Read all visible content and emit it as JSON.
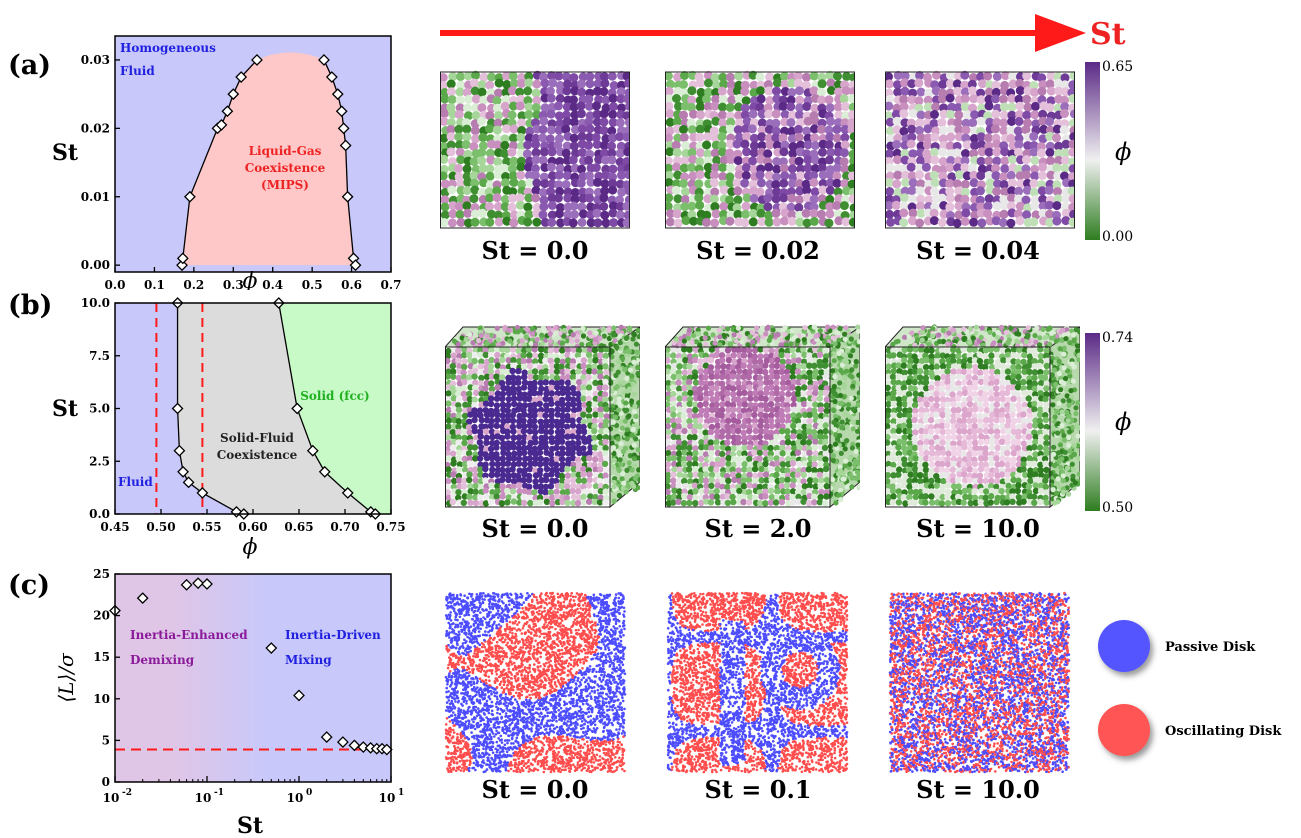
{
  "header": {
    "arrow_label": "St",
    "arrow_color": "#ff1a1a"
  },
  "panels": {
    "a": {
      "letter": "(a)",
      "ylabel": "St",
      "xlabel": "ϕ",
      "region_fluid": [
        "Homogeneous",
        "Fluid"
      ],
      "region_mips": [
        "Liquid-Gas",
        "Coexistence",
        "(MIPS)"
      ],
      "snapshot_captions": [
        "St = 0.0",
        "St = 0.02",
        "St = 0.04"
      ],
      "colorbar": {
        "max": "0.65",
        "min": "0.00",
        "symbol": "ϕ"
      }
    },
    "b": {
      "letter": "(b)",
      "ylabel": "St",
      "xlabel": "ϕ",
      "region_fluid": "Fluid",
      "region_coex": [
        "Solid-Fluid",
        "Coexistence"
      ],
      "region_solid": "Solid (fcc)",
      "snapshot_captions": [
        "St = 0.0",
        "St = 2.0",
        "St = 10.0"
      ],
      "colorbar": {
        "max": "0.74",
        "min": "0.50",
        "symbol": "ϕ"
      }
    },
    "c": {
      "letter": "(c)",
      "ylabel": "⟨L⟩/σ",
      "xlabel": "St",
      "region_left": [
        "Inertia-Enhanced",
        "Demixing"
      ],
      "region_right": [
        "Inertia-Driven",
        "Mixing"
      ],
      "snapshot_captions": [
        "St = 0.0",
        "St = 0.1",
        "St = 10.0"
      ],
      "legend": [
        {
          "label": "Passive Disk",
          "color": "#5555ff"
        },
        {
          "label": "Oscillating Disk",
          "color": "#ff5555"
        }
      ]
    }
  },
  "colors": {
    "fluid_blue": "#c8c8fa",
    "mips_pink": "#ffc8c8",
    "coex_gray": "#dcdcdc",
    "solid_green": "#c8fac8",
    "demix_purple": "#e0c6e6",
    "region_text_blue": "#2020e0",
    "region_text_red": "#ee2222",
    "region_text_green": "#20b020",
    "region_text_purple": "#8a1a9a",
    "colorbar_top": "#5b2a86",
    "colorbar_mid": "#f0f0f0",
    "colorbar_bottom": "#2e7d20"
  },
  "chart_data": [
    {
      "id": "a",
      "type": "scatter",
      "xlabel": "ϕ",
      "ylabel": "St",
      "xlim": [
        0.0,
        0.7
      ],
      "ylim": [
        -0.001,
        0.0335
      ],
      "xticks": [
        "0.0",
        "0.1",
        "0.2",
        "0.3",
        "0.4",
        "0.5",
        "0.6",
        "0.7"
      ],
      "yticks": [
        "0.00",
        "0.01",
        "0.02",
        "0.03"
      ],
      "series": [
        {
          "x": [
            0.17,
            0.172,
            0.19,
            0.26,
            0.27,
            0.285,
            0.3,
            0.32,
            0.36
          ],
          "y": [
            0.0,
            0.001,
            0.01,
            0.02,
            0.0205,
            0.0225,
            0.025,
            0.0275,
            0.03
          ]
        },
        {
          "x": [
            0.53,
            0.55,
            0.565,
            0.575,
            0.58,
            0.585,
            0.59,
            0.605,
            0.61
          ],
          "y": [
            0.03,
            0.0275,
            0.025,
            0.0225,
            0.02,
            0.0175,
            0.01,
            0.001,
            0.0
          ]
        }
      ]
    },
    {
      "id": "b",
      "type": "scatter",
      "xlabel": "ϕ",
      "ylabel": "St",
      "xlim": [
        0.45,
        0.75
      ],
      "ylim": [
        0.0,
        10.0
      ],
      "xticks": [
        "0.45",
        "0.50",
        "0.55",
        "0.60",
        "0.65",
        "0.70",
        "0.75"
      ],
      "yticks": [
        "0.0",
        "2.5",
        "5.0",
        "7.5",
        "10.0"
      ],
      "dashed_x": [
        0.495,
        0.545
      ],
      "series": [
        {
          "x": [
            0.518,
            0.518,
            0.52,
            0.524,
            0.53,
            0.545,
            0.582,
            0.59
          ],
          "y": [
            10.0,
            5.0,
            3.0,
            2.0,
            1.5,
            1.0,
            0.1,
            0.0
          ]
        },
        {
          "x": [
            0.628,
            0.648,
            0.665,
            0.678,
            0.703,
            0.728,
            0.733
          ],
          "y": [
            10.0,
            5.0,
            3.0,
            2.0,
            1.0,
            0.1,
            0.0
          ]
        }
      ]
    },
    {
      "id": "c",
      "type": "scatter",
      "xlabel": "St",
      "ylabel": "⟨L⟩/σ",
      "xscale": "log",
      "xlim": [
        0.01,
        10
      ],
      "ylim": [
        0,
        25
      ],
      "xticks": [
        "10-2",
        "10-1",
        "100",
        "101"
      ],
      "yticks": [
        "0",
        "5",
        "10",
        "15",
        "20",
        "25"
      ],
      "dashed_y": 3.9,
      "series": [
        {
          "x": [
            0.01,
            0.02,
            0.06,
            0.08,
            0.1,
            0.5,
            1.0,
            2.0,
            3.0,
            4.0,
            5.0,
            6.0,
            7.0,
            8.0,
            9.0
          ],
          "y": [
            20.6,
            22.1,
            23.7,
            23.9,
            23.8,
            16.1,
            10.4,
            5.4,
            4.8,
            4.4,
            4.2,
            4.1,
            4.0,
            4.0,
            3.9
          ]
        }
      ]
    }
  ]
}
